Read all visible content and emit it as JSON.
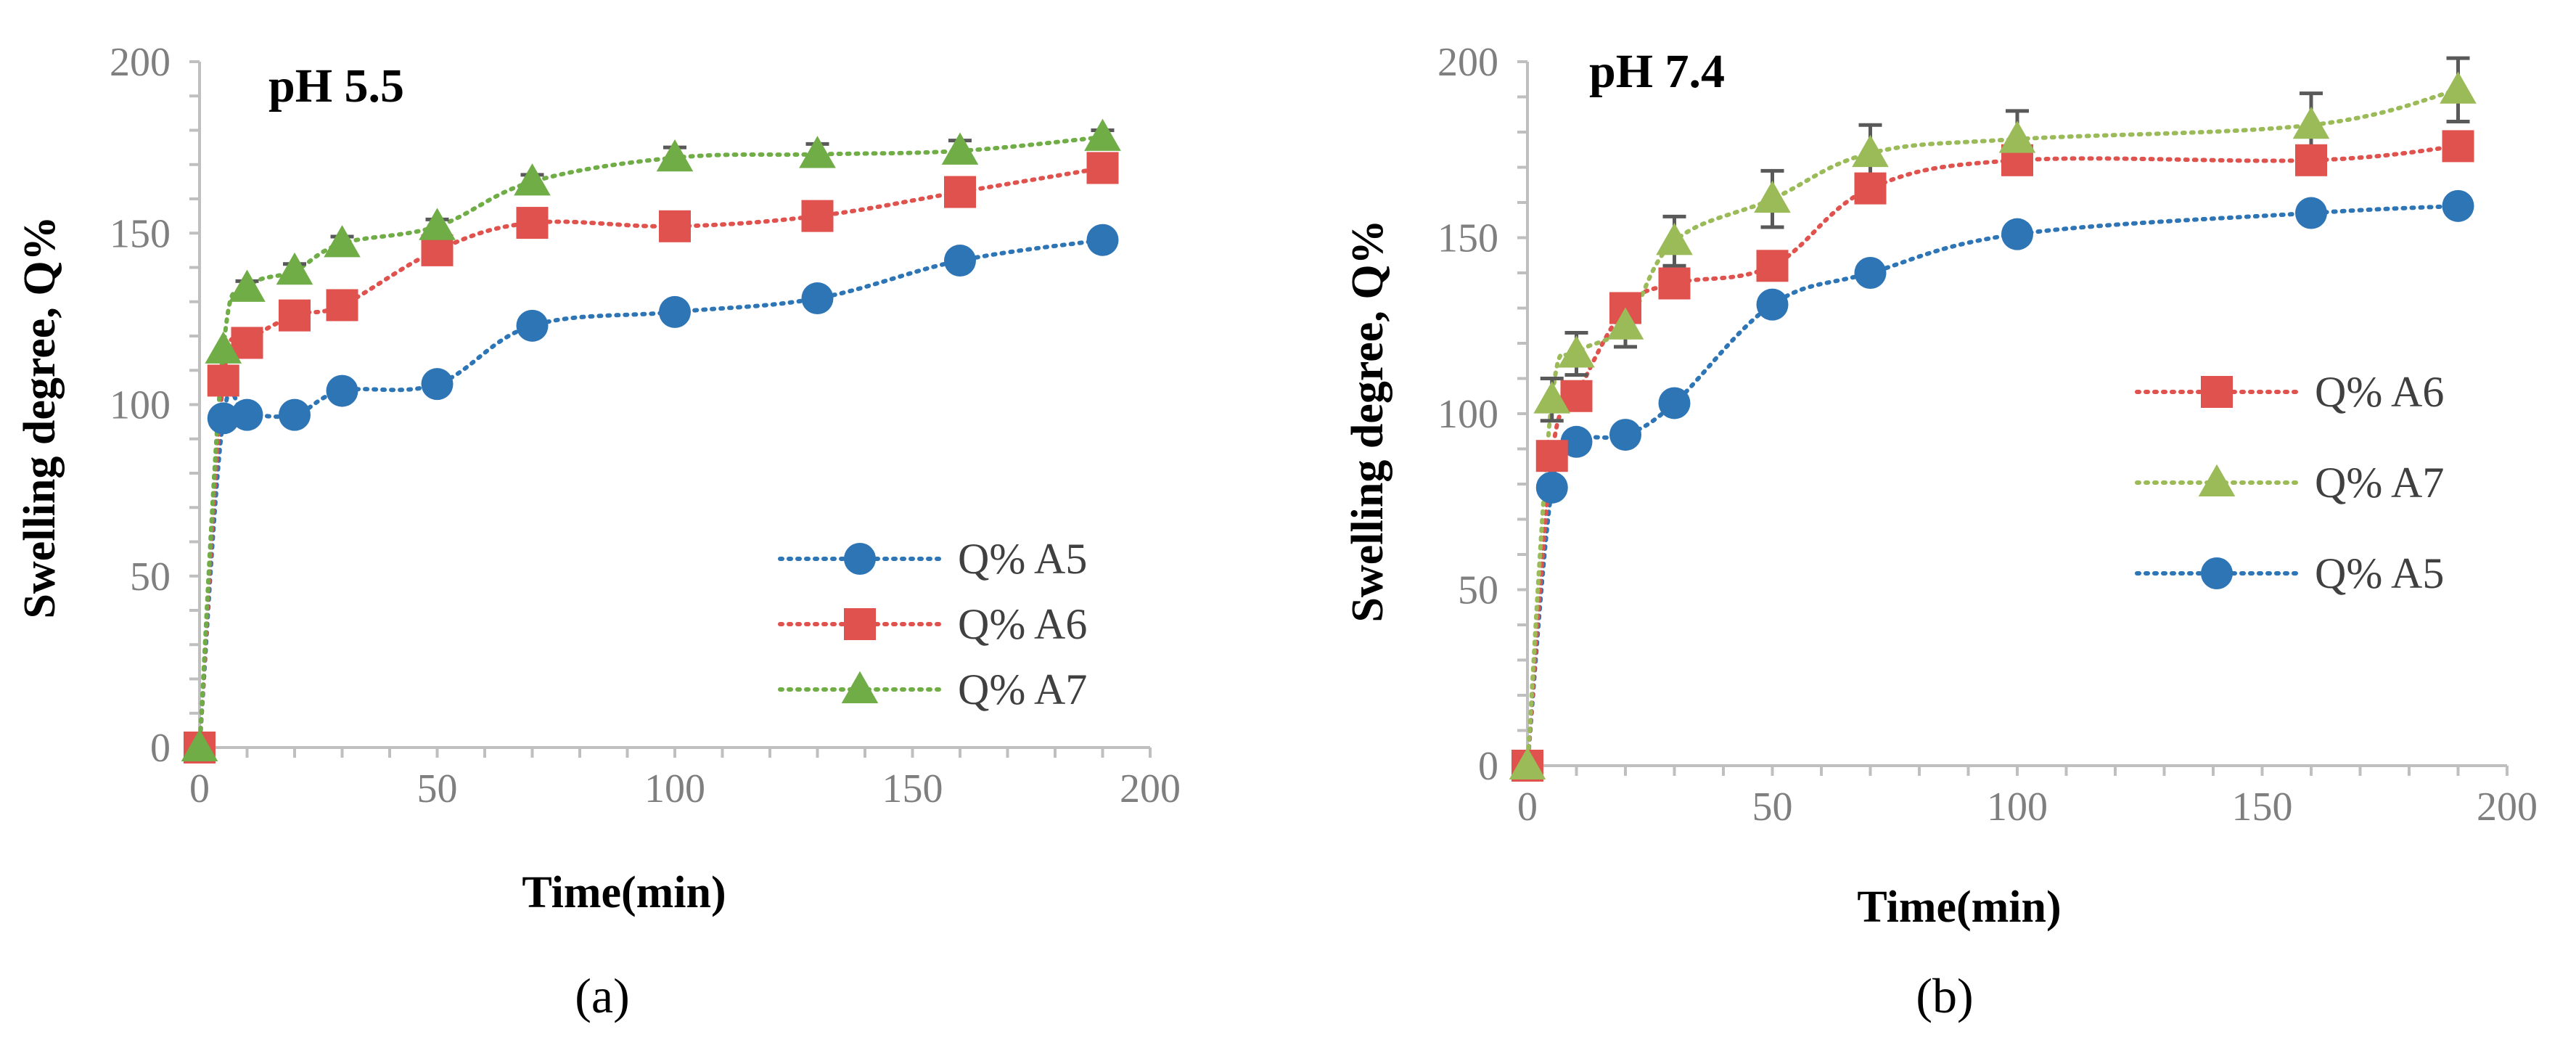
{
  "chart_data": [
    {
      "type": "line",
      "panel_label": "(a)",
      "title": "pH 5.5",
      "xlabel": "Time(min)",
      "ylabel": "Swelling degree, Q%",
      "xlim": [
        0,
        200
      ],
      "ylim": [
        0,
        200
      ],
      "xticks": [
        "0",
        "50",
        "100",
        "150",
        "200"
      ],
      "yticks": [
        "0",
        "50",
        "100",
        "150",
        "200"
      ],
      "grid": false,
      "legend_position": "bottom-right",
      "legend_order": [
        "Q% A5",
        "Q% A6",
        "Q% A7"
      ],
      "series": [
        {
          "name": "Q% A5",
          "color": "#2e75b6",
          "marker": "circle",
          "x": [
            0,
            5,
            10,
            20,
            30,
            50,
            70,
            100,
            130,
            160,
            190
          ],
          "y": [
            0,
            96,
            97,
            97,
            104,
            106,
            123,
            127,
            131,
            142,
            148
          ],
          "error": [
            0,
            0,
            0,
            0,
            0,
            0,
            0,
            0,
            0,
            0,
            0
          ]
        },
        {
          "name": "Q% A6",
          "color": "#e0524d",
          "marker": "square",
          "x": [
            0,
            5,
            10,
            20,
            30,
            50,
            70,
            100,
            130,
            160,
            190
          ],
          "y": [
            0,
            107,
            118,
            126,
            129,
            145,
            153,
            152,
            155,
            162,
            169
          ],
          "error": [
            0,
            0,
            0,
            0,
            0,
            0,
            0,
            0,
            0,
            0,
            0
          ]
        },
        {
          "name": "Q% A7",
          "color": "#70ad47",
          "marker": "triangle",
          "x": [
            0,
            5,
            10,
            20,
            30,
            50,
            70,
            100,
            130,
            160,
            190
          ],
          "y": [
            0,
            116,
            134,
            139,
            147,
            152,
            165,
            172,
            173,
            174,
            178
          ],
          "error": [
            0,
            0,
            2,
            2,
            2,
            2,
            2,
            3,
            3,
            3,
            2
          ]
        }
      ]
    },
    {
      "type": "line",
      "panel_label": "(b)",
      "title": "pH 7.4",
      "xlabel": "Time(min)",
      "ylabel": "Swelling degree, Q%",
      "xlim": [
        0,
        200
      ],
      "ylim": [
        0,
        200
      ],
      "xticks": [
        "0",
        "50",
        "100",
        "150",
        "200"
      ],
      "yticks": [
        "0",
        "50",
        "100",
        "150",
        "200"
      ],
      "grid": false,
      "legend_position": "right",
      "legend_order": [
        "Q% A6",
        "Q% A7",
        "Q% A5"
      ],
      "series": [
        {
          "name": "Q% A5",
          "color": "#2e75b6",
          "marker": "circle",
          "x": [
            0,
            5,
            10,
            20,
            30,
            50,
            70,
            100,
            160,
            190
          ],
          "y": [
            0,
            79,
            92,
            94,
            103,
            131,
            140,
            151,
            157,
            159
          ],
          "error": [
            0,
            0,
            0,
            0,
            0,
            0,
            0,
            0,
            0,
            0
          ]
        },
        {
          "name": "Q% A6",
          "color": "#e0524d",
          "marker": "square",
          "x": [
            0,
            5,
            10,
            20,
            30,
            50,
            70,
            100,
            160,
            190
          ],
          "y": [
            0,
            88,
            105,
            130,
            137,
            142,
            164,
            172,
            172,
            176
          ],
          "error": [
            0,
            0,
            0,
            0,
            0,
            0,
            0,
            0,
            0,
            0
          ]
        },
        {
          "name": "Q% A7",
          "color": "#9bbb59",
          "marker": "triangle",
          "x": [
            0,
            5,
            10,
            20,
            30,
            50,
            70,
            100,
            160,
            190
          ],
          "y": [
            0,
            104,
            117,
            125,
            149,
            161,
            174,
            178,
            182,
            192
          ],
          "error": [
            0,
            6,
            6,
            6,
            7,
            8,
            8,
            8,
            9,
            9
          ]
        }
      ]
    }
  ]
}
